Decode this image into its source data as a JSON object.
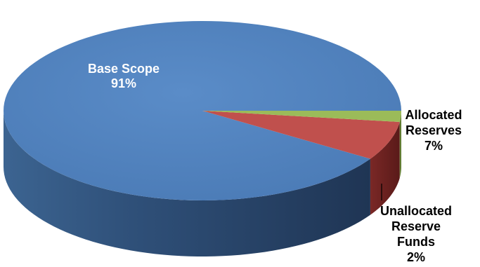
{
  "chart_data": {
    "type": "pie",
    "style": "3d",
    "title": "",
    "categories": [
      "Base Scope",
      "Allocated Reserves",
      "Unallocated Reserve Funds"
    ],
    "values": [
      91,
      7,
      2
    ],
    "units": "%",
    "colors": [
      "#4f81bd",
      "#c0504d",
      "#9bbb59"
    ],
    "data_labels": [
      {
        "lines": [
          "Base Scope",
          "91%"
        ],
        "color": "#ffffff"
      },
      {
        "lines": [
          "Allocated",
          "Reserves",
          "7%"
        ],
        "color": "#000000"
      },
      {
        "lines": [
          "Unallocated",
          "Reserve",
          "Funds",
          "2%"
        ],
        "color": "#000000"
      }
    ],
    "legend": "none"
  }
}
